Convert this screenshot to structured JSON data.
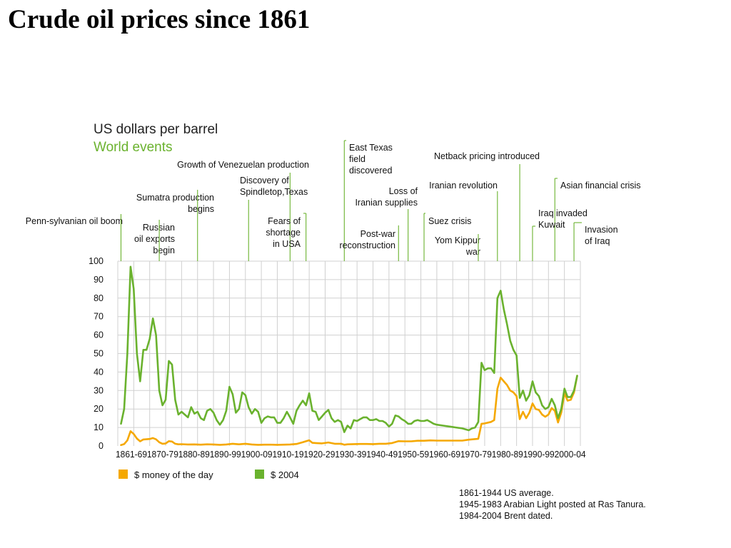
{
  "title": "Crude oil prices since 1861",
  "chart_data": {
    "type": "line",
    "unit_label": "US dollars per barrel",
    "events_heading": "World events",
    "x_ticks": [
      "1861-69",
      "1870-79",
      "1880-89",
      "1890-99",
      "1900-09",
      "1910-19",
      "1920-29",
      "1930-39",
      "1940-49",
      "1950-59",
      "1960-69",
      "1970-79",
      "1980-89",
      "1990-99",
      "2000-04"
    ],
    "y_ticks": [
      "100",
      "90",
      "80",
      "70",
      "60",
      "50",
      "40",
      "30",
      "20",
      "10",
      "0"
    ],
    "ylim": [
      0,
      100
    ],
    "xlim": [
      1860,
      2005
    ],
    "grid": true,
    "legend_placement": "bottom-left",
    "series": [
      {
        "name": "$ money of the day",
        "color": "#f5a800",
        "points": [
          [
            1861,
            0.5
          ],
          [
            1862,
            1
          ],
          [
            1863,
            3
          ],
          [
            1864,
            8
          ],
          [
            1865,
            6.5
          ],
          [
            1866,
            4
          ],
          [
            1867,
            2.5
          ],
          [
            1868,
            3.5
          ],
          [
            1870,
            3.8
          ],
          [
            1871,
            4.3
          ],
          [
            1872,
            3.6
          ],
          [
            1873,
            2
          ],
          [
            1874,
            1.2
          ],
          [
            1875,
            1.3
          ],
          [
            1876,
            2.6
          ],
          [
            1877,
            2.4
          ],
          [
            1878,
            1.2
          ],
          [
            1879,
            0.9
          ],
          [
            1880,
            0.95
          ],
          [
            1882,
            0.8
          ],
          [
            1884,
            0.85
          ],
          [
            1886,
            0.7
          ],
          [
            1888,
            0.9
          ],
          [
            1890,
            0.8
          ],
          [
            1892,
            0.6
          ],
          [
            1894,
            0.8
          ],
          [
            1896,
            1.2
          ],
          [
            1898,
            0.9
          ],
          [
            1900,
            1.2
          ],
          [
            1902,
            0.8
          ],
          [
            1904,
            0.6
          ],
          [
            1906,
            0.7
          ],
          [
            1908,
            0.7
          ],
          [
            1910,
            0.6
          ],
          [
            1912,
            0.7
          ],
          [
            1914,
            0.8
          ],
          [
            1916,
            1.1
          ],
          [
            1918,
            2
          ],
          [
            1920,
            3.1
          ],
          [
            1921,
            1.7
          ],
          [
            1922,
            1.6
          ],
          [
            1924,
            1.4
          ],
          [
            1926,
            1.9
          ],
          [
            1928,
            1.2
          ],
          [
            1930,
            1.2
          ],
          [
            1931,
            0.65
          ],
          [
            1932,
            0.9
          ],
          [
            1934,
            1
          ],
          [
            1936,
            1.1
          ],
          [
            1938,
            1.1
          ],
          [
            1940,
            1
          ],
          [
            1942,
            1.2
          ],
          [
            1944,
            1.2
          ],
          [
            1946,
            1.6
          ],
          [
            1948,
            2.6
          ],
          [
            1950,
            2.5
          ],
          [
            1952,
            2.5
          ],
          [
            1954,
            2.8
          ],
          [
            1956,
            2.8
          ],
          [
            1958,
            3
          ],
          [
            1960,
            2.9
          ],
          [
            1962,
            2.9
          ],
          [
            1964,
            2.9
          ],
          [
            1966,
            2.9
          ],
          [
            1968,
            2.9
          ],
          [
            1970,
            3.4
          ],
          [
            1973,
            3.9
          ],
          [
            1974,
            12
          ],
          [
            1975,
            12.2
          ],
          [
            1977,
            13
          ],
          [
            1978,
            14
          ],
          [
            1979,
            31
          ],
          [
            1980,
            37
          ],
          [
            1981,
            35
          ],
          [
            1982,
            33
          ],
          [
            1983,
            30
          ],
          [
            1984,
            29
          ],
          [
            1985,
            27
          ],
          [
            1986,
            14.5
          ],
          [
            1987,
            18.5
          ],
          [
            1988,
            15
          ],
          [
            1989,
            18
          ],
          [
            1990,
            23
          ],
          [
            1991,
            20
          ],
          [
            1992,
            19.5
          ],
          [
            1993,
            17
          ],
          [
            1994,
            15.8
          ],
          [
            1995,
            17
          ],
          [
            1996,
            20.5
          ],
          [
            1997,
            19
          ],
          [
            1998,
            12.7
          ],
          [
            1999,
            18
          ],
          [
            2000,
            28.5
          ],
          [
            2001,
            24.5
          ],
          [
            2002,
            25
          ],
          [
            2003,
            29
          ],
          [
            2004,
            38
          ]
        ]
      },
      {
        "name": "$ 2004",
        "color": "#6ab22e",
        "points": [
          [
            1861,
            12
          ],
          [
            1862,
            20
          ],
          [
            1863,
            50
          ],
          [
            1864,
            97
          ],
          [
            1865,
            85
          ],
          [
            1866,
            50
          ],
          [
            1867,
            35
          ],
          [
            1868,
            52
          ],
          [
            1869,
            52
          ],
          [
            1870,
            58
          ],
          [
            1871,
            69
          ],
          [
            1872,
            60
          ],
          [
            1873,
            30
          ],
          [
            1874,
            22
          ],
          [
            1875,
            25
          ],
          [
            1876,
            46
          ],
          [
            1877,
            44
          ],
          [
            1878,
            25
          ],
          [
            1879,
            17
          ],
          [
            1880,
            18.5
          ],
          [
            1881,
            17
          ],
          [
            1882,
            15.5
          ],
          [
            1883,
            21
          ],
          [
            1884,
            17.5
          ],
          [
            1885,
            18.5
          ],
          [
            1886,
            15
          ],
          [
            1887,
            14
          ],
          [
            1888,
            19
          ],
          [
            1889,
            20
          ],
          [
            1890,
            18
          ],
          [
            1891,
            14
          ],
          [
            1892,
            11.5
          ],
          [
            1893,
            14
          ],
          [
            1894,
            19
          ],
          [
            1895,
            32
          ],
          [
            1896,
            28
          ],
          [
            1897,
            18
          ],
          [
            1898,
            20
          ],
          [
            1899,
            29
          ],
          [
            1900,
            27.5
          ],
          [
            1901,
            21
          ],
          [
            1902,
            17.5
          ],
          [
            1903,
            20
          ],
          [
            1904,
            18.5
          ],
          [
            1905,
            12.5
          ],
          [
            1906,
            15
          ],
          [
            1907,
            16
          ],
          [
            1908,
            15.5
          ],
          [
            1909,
            15.5
          ],
          [
            1910,
            12.5
          ],
          [
            1911,
            12.5
          ],
          [
            1912,
            15
          ],
          [
            1913,
            18.5
          ],
          [
            1914,
            15.5
          ],
          [
            1915,
            12
          ],
          [
            1916,
            19
          ],
          [
            1917,
            22
          ],
          [
            1918,
            24.5
          ],
          [
            1919,
            22
          ],
          [
            1920,
            28.5
          ],
          [
            1921,
            19
          ],
          [
            1922,
            18.5
          ],
          [
            1923,
            14
          ],
          [
            1924,
            16
          ],
          [
            1925,
            18
          ],
          [
            1926,
            19.5
          ],
          [
            1927,
            15
          ],
          [
            1928,
            13
          ],
          [
            1929,
            14
          ],
          [
            1930,
            13
          ],
          [
            1931,
            7.5
          ],
          [
            1932,
            11
          ],
          [
            1933,
            9.5
          ],
          [
            1934,
            14
          ],
          [
            1935,
            13.5
          ],
          [
            1936,
            14.5
          ],
          [
            1937,
            15.5
          ],
          [
            1938,
            15.5
          ],
          [
            1939,
            14
          ],
          [
            1940,
            14
          ],
          [
            1941,
            14.5
          ],
          [
            1942,
            13.5
          ],
          [
            1943,
            13.5
          ],
          [
            1944,
            12.5
          ],
          [
            1945,
            10.5
          ],
          [
            1946,
            12
          ],
          [
            1947,
            16.5
          ],
          [
            1948,
            16
          ],
          [
            1949,
            14.5
          ],
          [
            1950,
            13.5
          ],
          [
            1951,
            12
          ],
          [
            1952,
            12
          ],
          [
            1953,
            13.5
          ],
          [
            1954,
            14
          ],
          [
            1955,
            13.5
          ],
          [
            1956,
            13.5
          ],
          [
            1957,
            14
          ],
          [
            1958,
            13
          ],
          [
            1959,
            12
          ],
          [
            1960,
            11.5
          ],
          [
            1962,
            11
          ],
          [
            1964,
            10.5
          ],
          [
            1966,
            10
          ],
          [
            1968,
            9.5
          ],
          [
            1970,
            8.5
          ],
          [
            1971,
            9.5
          ],
          [
            1972,
            10
          ],
          [
            1973,
            13
          ],
          [
            1974,
            45
          ],
          [
            1975,
            41
          ],
          [
            1976,
            42
          ],
          [
            1977,
            42
          ],
          [
            1978,
            39.5
          ],
          [
            1979,
            80
          ],
          [
            1980,
            84
          ],
          [
            1981,
            74
          ],
          [
            1982,
            66
          ],
          [
            1983,
            57
          ],
          [
            1984,
            52
          ],
          [
            1985,
            49
          ],
          [
            1986,
            26
          ],
          [
            1987,
            30
          ],
          [
            1988,
            24.5
          ],
          [
            1989,
            27.5
          ],
          [
            1990,
            35
          ],
          [
            1991,
            29
          ],
          [
            1992,
            27
          ],
          [
            1993,
            22
          ],
          [
            1994,
            20
          ],
          [
            1995,
            21
          ],
          [
            1996,
            25.5
          ],
          [
            1997,
            22
          ],
          [
            1998,
            15
          ],
          [
            1999,
            20
          ],
          [
            2000,
            31
          ],
          [
            2001,
            26.5
          ],
          [
            2002,
            26.5
          ],
          [
            2003,
            30
          ],
          [
            2004,
            38
          ]
        ]
      }
    ],
    "events": [
      {
        "lines": [
          "Penn-sylvanian oil boom"
        ],
        "year": 1861,
        "anchor": "end"
      },
      {
        "lines": [
          "Russian",
          "oil exports",
          "begin"
        ],
        "year": 1873,
        "anchor": "end"
      },
      {
        "lines": [
          "Sumatra production",
          "begins"
        ],
        "year": 1885,
        "anchor": "end"
      },
      {
        "lines": [
          "Growth of Venezuelan production"
        ],
        "year": 1914,
        "anchor": "end"
      },
      {
        "lines": [
          "Discovery of",
          "Spindletop,Texas"
        ],
        "year": 1901,
        "anchor": "start"
      },
      {
        "lines": [
          "Fears of",
          "shortage",
          "in USA"
        ],
        "year": 1919,
        "anchor": "end"
      },
      {
        "lines": [
          "East Texas",
          "field",
          "discovered"
        ],
        "year": 1931,
        "anchor": "start"
      },
      {
        "lines": [
          "Loss of",
          "Iranian supplies"
        ],
        "year": 1951,
        "anchor": "end"
      },
      {
        "lines": [
          "Post-war",
          "reconstruction"
        ],
        "year": 1948,
        "anchor": "end"
      },
      {
        "lines": [
          "Netback pricing introduced"
        ],
        "year": 1986,
        "anchor": "end"
      },
      {
        "lines": [
          "Iranian revolution"
        ],
        "year": 1979,
        "anchor": "end"
      },
      {
        "lines": [
          "Suez crisis"
        ],
        "year": 1956,
        "anchor": "start"
      },
      {
        "lines": [
          "Yom Kippur",
          "war"
        ],
        "year": 1973,
        "anchor": "end"
      },
      {
        "lines": [
          "Asian financial crisis"
        ],
        "year": 1997,
        "anchor": "start"
      },
      {
        "lines": [
          "Iraq invaded",
          "Kuwait"
        ],
        "year": 1990,
        "anchor": "start"
      },
      {
        "lines": [
          "Invasion",
          "of Iraq"
        ],
        "year": 2003,
        "anchor": "start"
      }
    ],
    "notes": [
      "1861-1944 US average.",
      "1945-1983 Arabian Light posted at Ras Tanura.",
      "1984-2004 Brent dated."
    ],
    "colors": {
      "events": "#6ab22e",
      "grid": "#d0d0d0"
    }
  }
}
